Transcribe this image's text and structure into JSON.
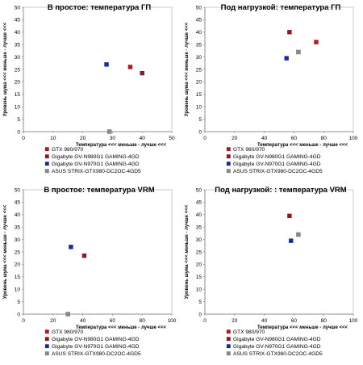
{
  "colors": {
    "GTX 980/970": "#c0141c",
    "Gigabyte GV-N980G1 GAMING-4GD": "#9b1419",
    "Gigabyte GV-N970G1 GAMING-4GD": "#1428b4",
    "ASUS STRIX-GTX980-DC2OC-4GD5": "#8a8a8a"
  },
  "chart_data": [
    {
      "type": "scatter",
      "title": "В простое: температура ГП",
      "xlabel": "Температура <<< меньше - лучше <<<",
      "ylabel": "Уровень шума <<< меньше - лучше <<<",
      "xlim": [
        0,
        50
      ],
      "ylim": [
        0,
        50
      ],
      "xticks": [
        0,
        10,
        20,
        30,
        40,
        50
      ],
      "yticks": [
        0,
        5,
        10,
        15,
        20,
        25,
        30,
        35,
        40,
        45,
        50
      ],
      "legend_position": "bottom",
      "series": [
        {
          "name": "GTX 980/970",
          "points": [
            [
              36,
              26
            ]
          ]
        },
        {
          "name": "Gigabyte GV-N980G1 GAMING-4GD",
          "points": [
            [
              40,
              23.5
            ]
          ]
        },
        {
          "name": "Gigabyte GV-N970G1 GAMING-4GD",
          "points": [
            [
              28,
              27
            ]
          ]
        },
        {
          "name": "ASUS STRIX-GTX980-DC2OC-4GD5",
          "points": [
            [
              29,
              0
            ]
          ]
        }
      ]
    },
    {
      "type": "scatter",
      "title": "Под нагрузкой: температура ГП",
      "xlabel": "Температура <<< меньше - лучше <<<",
      "ylabel": "Уровень шума <<< меньше - лучше <<<",
      "xlim": [
        0,
        100
      ],
      "ylim": [
        0,
        50
      ],
      "xticks": [
        0,
        20,
        40,
        60,
        80,
        100
      ],
      "yticks": [
        0,
        5,
        10,
        15,
        20,
        25,
        30,
        35,
        40,
        45,
        50
      ],
      "legend_position": "bottom",
      "series": [
        {
          "name": "GTX 980/970",
          "points": [
            [
              75,
              36
            ]
          ]
        },
        {
          "name": "Gigabyte GV-N980G1 GAMING-4GD",
          "points": [
            [
              57,
              40
            ]
          ]
        },
        {
          "name": "Gigabyte GV-N970G1 GAMING-4GD",
          "points": [
            [
              55,
              29.5
            ]
          ]
        },
        {
          "name": "ASUS STRIX-GTX980-DC2OC-4GD5",
          "points": [
            [
              63,
              32
            ]
          ]
        }
      ]
    },
    {
      "type": "scatter",
      "title": "В простое: температура VRM",
      "xlabel": "Температура <<< меньше - лучше <<<",
      "ylabel": "Уровень шума <<< меньше - лучше <<<",
      "xlim": [
        0,
        100
      ],
      "ylim": [
        0,
        50
      ],
      "xticks": [
        0,
        20,
        40,
        60,
        80,
        100
      ],
      "yticks": [
        0,
        5,
        10,
        15,
        20,
        25,
        30,
        35,
        40,
        45,
        50
      ],
      "legend_position": "bottom",
      "series": [
        {
          "name": "GTX 980/970",
          "points": []
        },
        {
          "name": "Gigabyte GV-N980G1 GAMING-4GD",
          "points": [
            [
              41,
              23.5
            ]
          ]
        },
        {
          "name": "Gigabyte GV-N970G1 GAMING-4GD",
          "points": [
            [
              32,
              27
            ]
          ]
        },
        {
          "name": "ASUS STRIX-GTX980-DC2OC-4GD5",
          "points": [
            [
              30,
              0
            ]
          ]
        }
      ]
    },
    {
      "type": "scatter",
      "title": "Под нагрузкой: : температура VRM",
      "xlabel": "Температура <<< меньше - лучше <<<",
      "ylabel": "Уровень шума <<< меньше - лучше <<<",
      "xlim": [
        0,
        100
      ],
      "ylim": [
        0,
        50
      ],
      "xticks": [
        0,
        20,
        40,
        60,
        80,
        100
      ],
      "yticks": [
        0,
        5,
        10,
        15,
        20,
        25,
        30,
        35,
        40,
        45,
        50
      ],
      "legend_position": "bottom",
      "series": [
        {
          "name": "GTX 980/970",
          "points": []
        },
        {
          "name": "Gigabyte GV-N980G1 GAMING-4GD",
          "points": [
            [
              57,
              39.5
            ]
          ]
        },
        {
          "name": "Gigabyte GV-N970G1 GAMING-4GD",
          "points": [
            [
              58,
              29.5
            ]
          ]
        },
        {
          "name": "ASUS STRIX-GTX980-DC2OC-4GD5",
          "points": [
            [
              63,
              32
            ]
          ]
        }
      ]
    }
  ]
}
